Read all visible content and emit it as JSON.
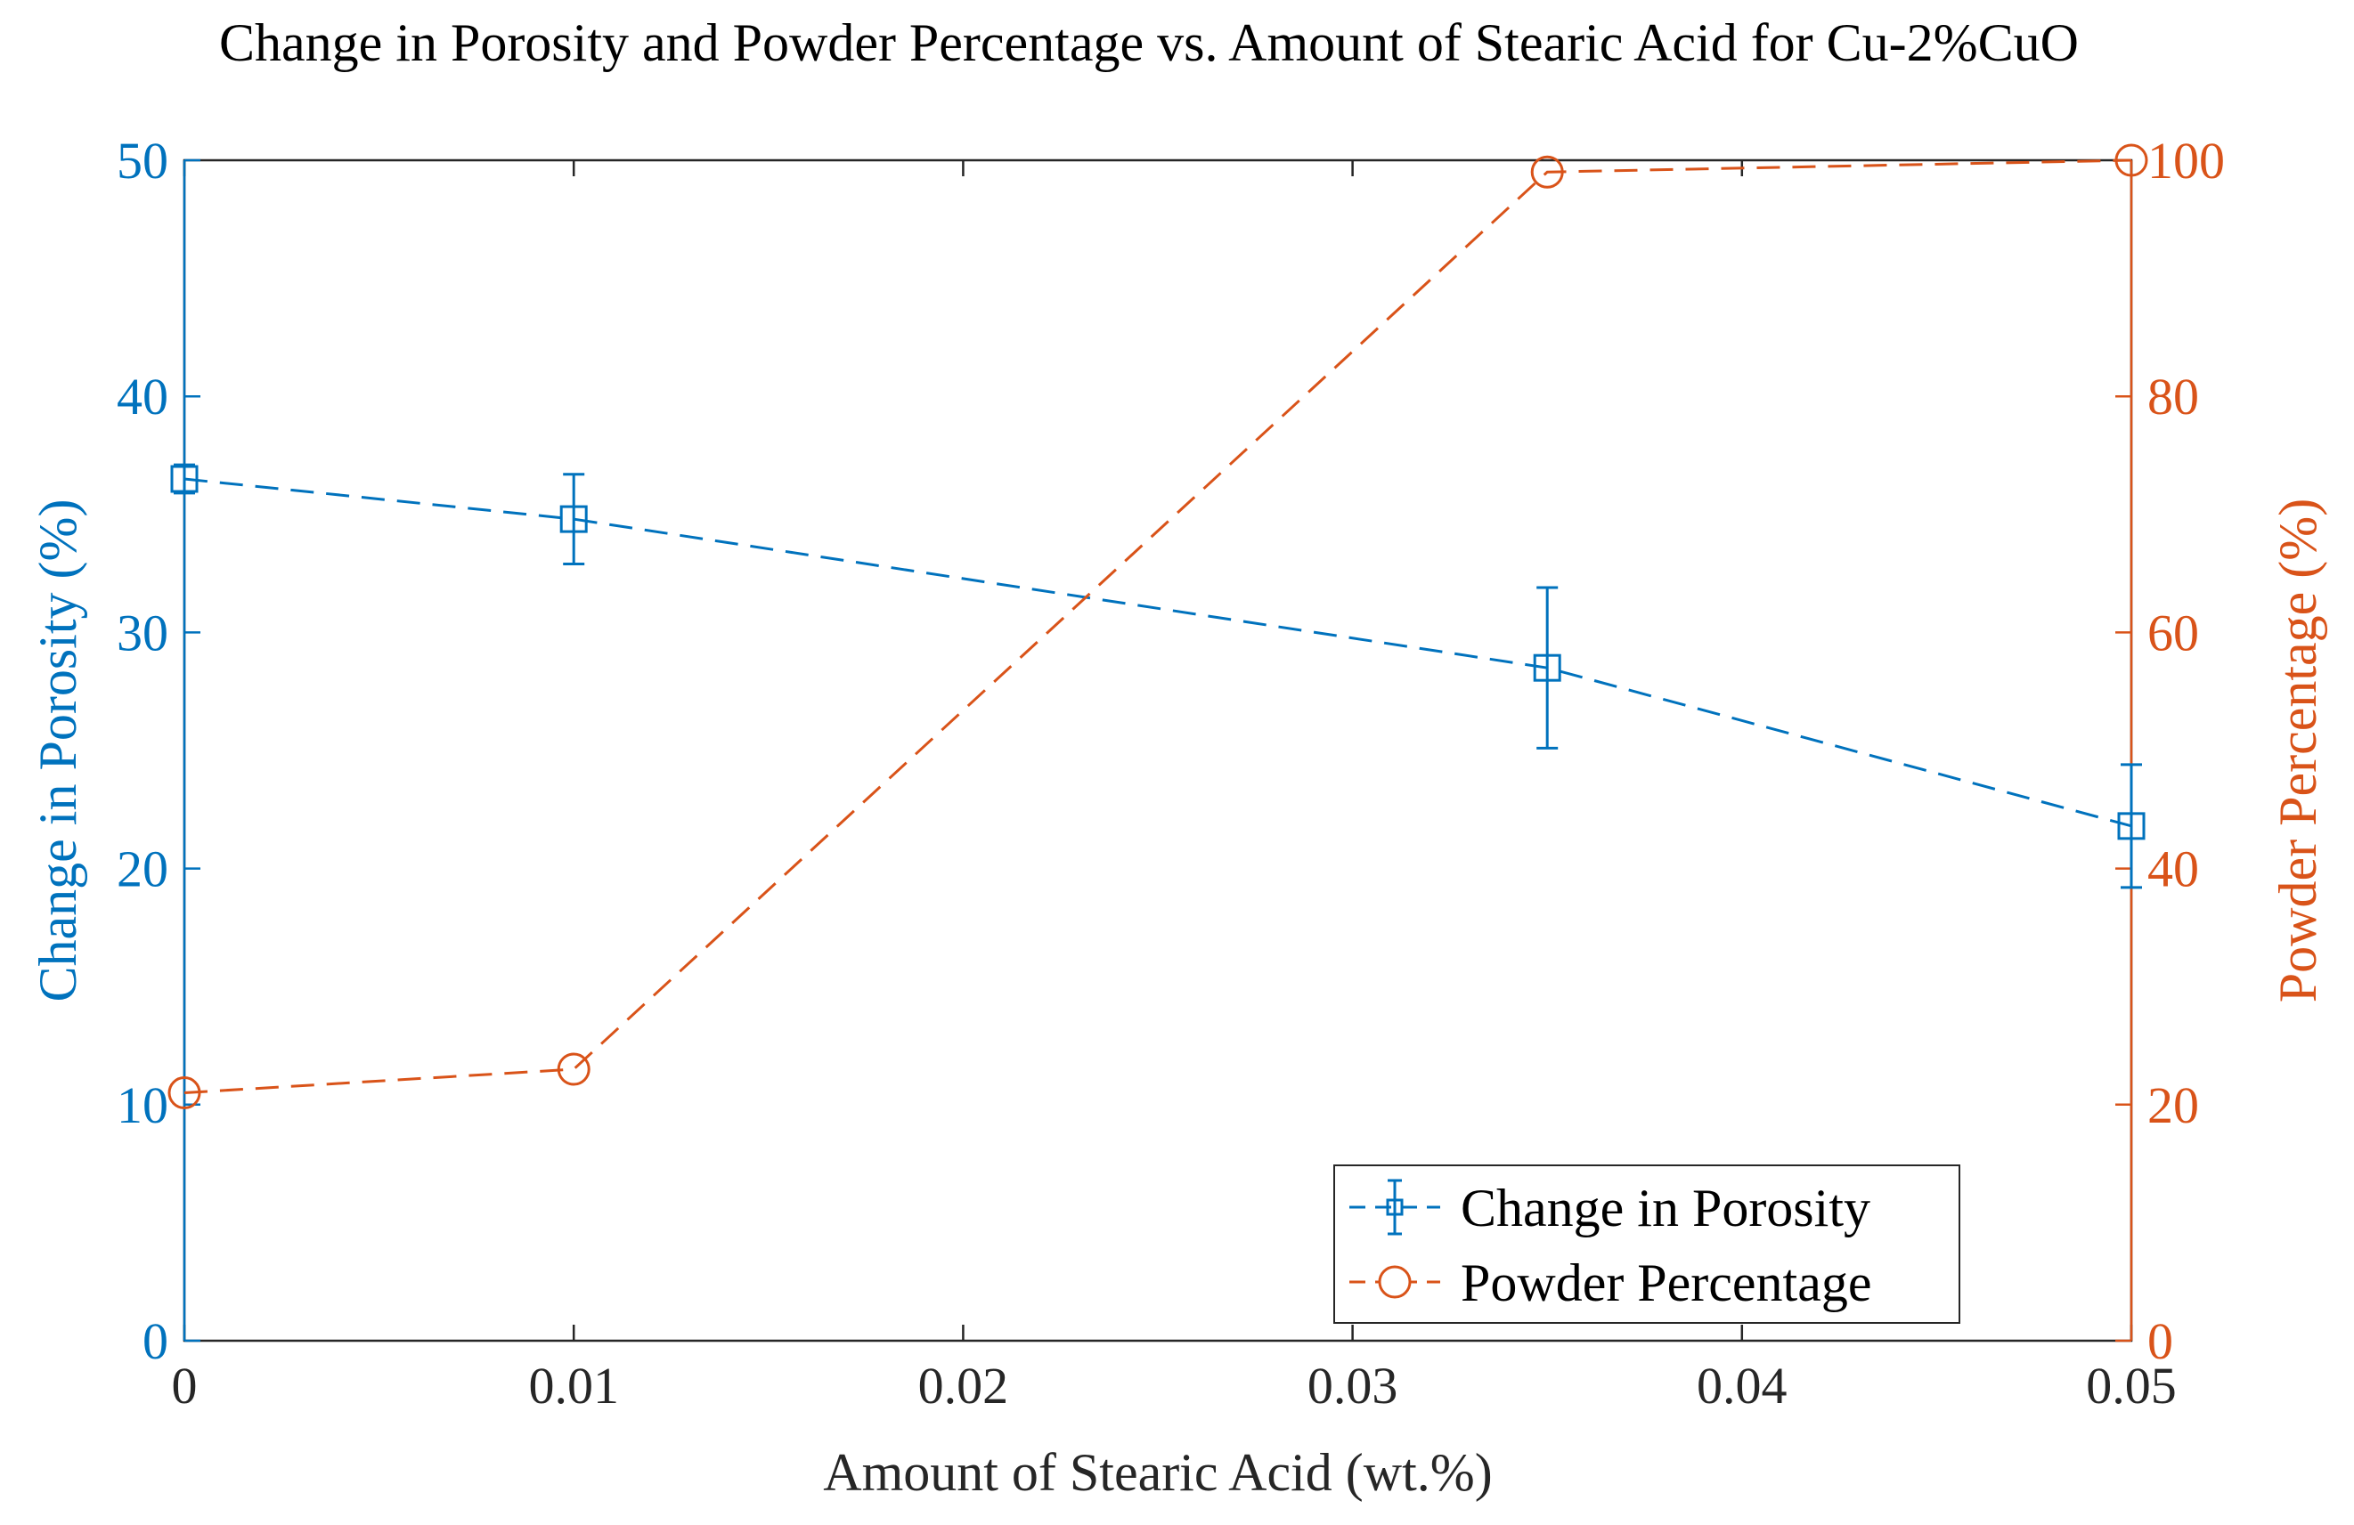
{
  "chart_data": {
    "type": "line",
    "title": "Change in Porosity and Powder Percentage vs. Amount of Stearic Acid for Cu-2%CuO",
    "xlabel": "Amount of Stearic Acid (wt.%)",
    "ylabel_left": "Change in Porosity (%)",
    "ylabel_right": "Powder Percentage (%)",
    "xlim": [
      0,
      0.05
    ],
    "ylim_left": [
      0,
      50
    ],
    "ylim_right": [
      0,
      100
    ],
    "x_ticks": [
      "0",
      "0.01",
      "0.02",
      "0.03",
      "0.04",
      "0.05"
    ],
    "y_ticks_left": [
      "0",
      "10",
      "20",
      "30",
      "40",
      "50"
    ],
    "y_ticks_right": [
      "0",
      "20",
      "40",
      "60",
      "80",
      "100"
    ],
    "grid": false,
    "legend_position": "bottom-right",
    "colors": {
      "porosity": "#0072BD",
      "powder": "#D95319",
      "axes": "#262626"
    },
    "series": [
      {
        "name": "Change in Porosity",
        "axis": "left",
        "marker": "square",
        "line": "dashed",
        "x": [
          0,
          0.01,
          0.035,
          0.05
        ],
        "y": [
          36.5,
          34.8,
          28.5,
          21.8
        ],
        "error": [
          0.6,
          1.9,
          3.4,
          2.6
        ]
      },
      {
        "name": "Powder Percentage",
        "axis": "right",
        "marker": "circle",
        "line": "dashed",
        "x": [
          0,
          0.01,
          0.035,
          0.05
        ],
        "y": [
          21,
          23,
          99,
          100
        ]
      }
    ]
  }
}
